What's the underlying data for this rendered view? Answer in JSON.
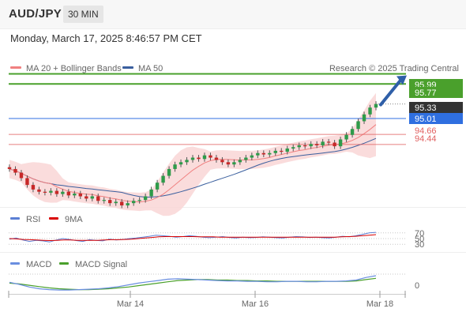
{
  "header": {
    "symbol": "AUD/JPY",
    "timeframe": "30 MIN"
  },
  "datetime": "Monday, March 17, 2025 8:46:57 PM CET",
  "legend": {
    "main": [
      {
        "name": "MA 20 + Bollinger Bands",
        "color": "#f08080"
      },
      {
        "name": "MA 50",
        "color": "#3a5f9e"
      }
    ],
    "rsi": [
      {
        "name": "RSI",
        "color": "#5b7fd4"
      },
      {
        "name": "9MA",
        "color": "#d90000"
      }
    ],
    "macd": [
      {
        "name": "MACD",
        "color": "#6a8ee0"
      },
      {
        "name": "MACD Signal",
        "color": "#4aa02c"
      }
    ]
  },
  "credit": "Research © 2025 Trading Central",
  "colors": {
    "resistance": "#4aa02c",
    "pivot": "#2f6fe0",
    "support": "#e06060",
    "current": "#333333",
    "arrow": "#2f5fa8",
    "band_fill": "#f9d6d6"
  },
  "chart_data": {
    "type": "candlestick",
    "symbol": "AUD/JPY",
    "x_ticks": [
      "Mar 14",
      "Mar 16",
      "Mar 18"
    ],
    "price_levels": [
      {
        "label": "95.99",
        "value": 95.99,
        "kind": "resistance"
      },
      {
        "label": "95.77",
        "value": 95.77,
        "kind": "resistance"
      },
      {
        "label": "95.33",
        "value": 95.33,
        "kind": "current"
      },
      {
        "label": "95.01",
        "value": 95.01,
        "kind": "pivot"
      },
      {
        "label": "94.66",
        "value": 94.66,
        "kind": "support"
      },
      {
        "label": "94.44",
        "value": 94.44,
        "kind": "support"
      }
    ],
    "close_values": [
      93.9,
      93.82,
      93.7,
      93.55,
      93.45,
      93.4,
      93.38,
      93.42,
      93.35,
      93.4,
      93.32,
      93.36,
      93.3,
      93.25,
      93.3,
      93.2,
      93.22,
      93.15,
      93.18,
      93.1,
      93.15,
      93.2,
      93.22,
      93.3,
      93.45,
      93.6,
      93.75,
      93.9,
      94.0,
      94.05,
      94.1,
      94.15,
      94.12,
      94.2,
      94.15,
      94.1,
      94.05,
      94.0,
      94.05,
      94.1,
      94.15,
      94.2,
      94.25,
      94.22,
      94.25,
      94.3,
      94.28,
      94.35,
      94.38,
      94.42,
      94.4,
      94.45,
      94.42,
      94.5,
      94.48,
      94.4,
      94.55,
      94.65,
      94.78,
      94.95,
      95.1,
      95.25,
      95.33
    ],
    "projection": {
      "from": 95.33,
      "to": 95.99
    },
    "rsi": {
      "levels": [
        70,
        50,
        30
      ],
      "rsi_values": [
        48,
        52,
        45,
        40,
        44,
        42,
        38,
        45,
        50,
        47,
        43,
        40,
        46,
        44,
        42,
        48,
        45,
        47,
        50,
        52,
        55,
        58,
        62,
        60,
        58,
        55,
        57,
        60,
        58,
        55,
        53,
        55,
        57,
        54,
        52,
        55,
        53,
        54,
        56,
        55,
        53,
        52,
        55,
        57,
        56,
        54,
        55,
        53,
        52,
        55,
        58,
        56,
        60,
        65,
        70,
        72
      ],
      "ma_values": [
        50,
        49,
        47,
        46,
        45,
        44,
        43,
        44,
        45,
        45,
        44,
        44,
        44,
        44,
        45,
        46,
        46,
        47,
        48,
        50,
        52,
        54,
        56,
        57,
        57,
        57,
        57,
        57,
        56,
        56,
        56,
        55,
        55,
        55,
        55,
        55,
        55,
        55,
        55,
        55,
        55,
        55,
        55,
        55,
        55,
        55,
        55,
        55,
        55,
        56,
        57,
        58,
        60,
        62,
        64
      ]
    },
    "macd": {
      "zero_label": "0",
      "macd_values": [
        0.05,
        0.0,
        -0.06,
        -0.1,
        -0.12,
        -0.13,
        -0.13,
        -0.12,
        -0.11,
        -0.1,
        -0.08,
        -0.05,
        -0.01,
        0.03,
        0.06,
        0.09,
        0.12,
        0.13,
        0.12,
        0.11,
        0.1,
        0.09,
        0.08,
        0.08,
        0.07,
        0.07,
        0.06,
        0.06,
        0.07,
        0.07,
        0.06,
        0.06,
        0.07,
        0.07,
        0.08,
        0.1,
        0.16,
        0.2
      ],
      "signal_values": [
        0.03,
        0.01,
        -0.02,
        -0.05,
        -0.08,
        -0.1,
        -0.11,
        -0.12,
        -0.12,
        -0.11,
        -0.1,
        -0.08,
        -0.06,
        -0.03,
        0.0,
        0.03,
        0.06,
        0.09,
        0.1,
        0.11,
        0.11,
        0.1,
        0.1,
        0.09,
        0.09,
        0.08,
        0.08,
        0.07,
        0.07,
        0.07,
        0.07,
        0.07,
        0.07,
        0.07,
        0.07,
        0.08,
        0.11,
        0.14
      ]
    }
  }
}
